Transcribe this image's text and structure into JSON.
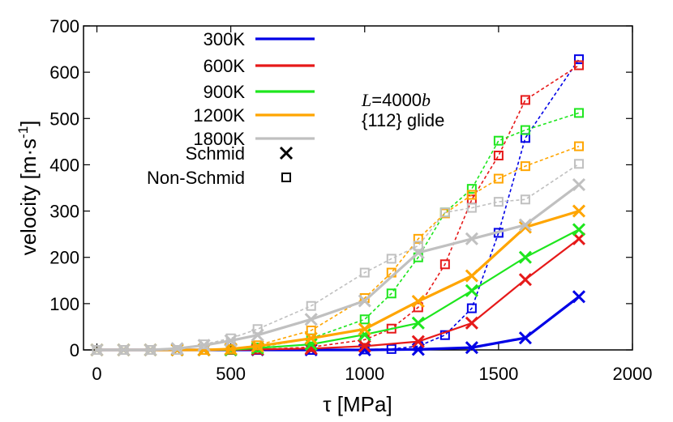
{
  "chart_data": {
    "type": "line",
    "xlabel": "τ [MPa]",
    "ylabel_main": "velocity [m·s",
    "ylabel_sup": "-1",
    "ylabel_close": "]",
    "xlim": [
      -50,
      2000
    ],
    "ylim": [
      0,
      700
    ],
    "xticks": [
      0,
      500,
      1000,
      1500,
      2000
    ],
    "yticks": [
      0,
      100,
      200,
      300,
      400,
      500,
      600,
      700
    ],
    "xtick_labels": [
      "0",
      "500",
      "1000",
      "1500",
      "2000"
    ],
    "ytick_labels": [
      "0",
      "100",
      "200",
      "300",
      "400",
      "500",
      "600",
      "700"
    ],
    "annotation_L": "L",
    "annotation_L_rest": "=4000",
    "annotation_b": "b",
    "annotation_glide": "{112} glide",
    "legend_marker_schmid": "Schmid",
    "legend_marker_nonschmid": "Non-Schmid",
    "series": [
      {
        "name": "300K",
        "color": "#0000e6",
        "schmid": {
          "x": [
            0,
            100,
            200,
            300,
            400,
            500,
            600,
            800,
            1000,
            1200,
            1400,
            1600,
            1800
          ],
          "y": [
            0,
            0,
            0,
            0,
            0,
            0,
            0,
            0,
            0,
            1,
            5,
            26,
            115
          ]
        },
        "nonschmid": {
          "x": [
            0,
            100,
            200,
            300,
            400,
            500,
            600,
            800,
            1000,
            1100,
            1200,
            1300,
            1400,
            1500,
            1600,
            1800
          ],
          "y": [
            0,
            0,
            0,
            0,
            0,
            0,
            0,
            0,
            1,
            2,
            8,
            32,
            90,
            253,
            458,
            628
          ]
        }
      },
      {
        "name": "600K",
        "color": "#e61919",
        "schmid": {
          "x": [
            0,
            100,
            200,
            300,
            400,
            500,
            600,
            800,
            1000,
            1200,
            1400,
            1600,
            1800
          ],
          "y": [
            0,
            0,
            0,
            0,
            0,
            0,
            1,
            3,
            8,
            18,
            58,
            152,
            240
          ]
        },
        "nonschmid": {
          "x": [
            0,
            100,
            200,
            300,
            400,
            500,
            600,
            800,
            1000,
            1100,
            1200,
            1300,
            1400,
            1500,
            1600,
            1800
          ],
          "y": [
            0,
            0,
            0,
            0,
            0,
            0,
            1,
            6,
            22,
            46,
            92,
            185,
            325,
            420,
            540,
            615
          ]
        }
      },
      {
        "name": "900K",
        "color": "#1ee61e",
        "schmid": {
          "x": [
            0,
            100,
            200,
            300,
            400,
            500,
            600,
            800,
            1000,
            1200,
            1400,
            1600,
            1800
          ],
          "y": [
            0,
            0,
            0,
            0,
            0,
            0,
            4,
            12,
            33,
            58,
            128,
            200,
            260
          ]
        },
        "nonschmid": {
          "x": [
            0,
            100,
            200,
            300,
            400,
            500,
            600,
            800,
            1000,
            1100,
            1200,
            1300,
            1400,
            1500,
            1600,
            1800
          ],
          "y": [
            0,
            0,
            0,
            0,
            0,
            1,
            5,
            25,
            66,
            122,
            200,
            297,
            348,
            452,
            475,
            512
          ]
        }
      },
      {
        "name": "1200K",
        "color": "#ffa500",
        "schmid": {
          "x": [
            0,
            100,
            200,
            300,
            400,
            500,
            600,
            800,
            1000,
            1200,
            1400,
            1600,
            1800
          ],
          "y": [
            0,
            0,
            0,
            0,
            0,
            2,
            8,
            25,
            45,
            105,
            160,
            265,
            300
          ]
        },
        "nonschmid": {
          "x": [
            0,
            100,
            200,
            300,
            400,
            500,
            600,
            800,
            1000,
            1100,
            1200,
            1300,
            1400,
            1500,
            1600,
            1800
          ],
          "y": [
            0,
            0,
            0,
            0,
            0,
            2,
            10,
            42,
            112,
            167,
            240,
            295,
            335,
            370,
            397,
            440
          ]
        }
      },
      {
        "name": "1800K",
        "color": "#c0c0c0",
        "schmid": {
          "x": [
            0,
            100,
            200,
            300,
            400,
            500,
            600,
            800,
            1000,
            1200,
            1400,
            1600,
            1800
          ],
          "y": [
            0,
            0,
            0,
            3,
            10,
            20,
            32,
            66,
            106,
            210,
            240,
            270,
            357
          ]
        },
        "nonschmid": {
          "x": [
            0,
            100,
            200,
            300,
            400,
            500,
            600,
            800,
            1000,
            1100,
            1200,
            1300,
            1400,
            1500,
            1600,
            1800
          ],
          "y": [
            0,
            0,
            0,
            0,
            12,
            25,
            45,
            95,
            167,
            197,
            225,
            297,
            307,
            320,
            325,
            402
          ]
        }
      }
    ]
  }
}
